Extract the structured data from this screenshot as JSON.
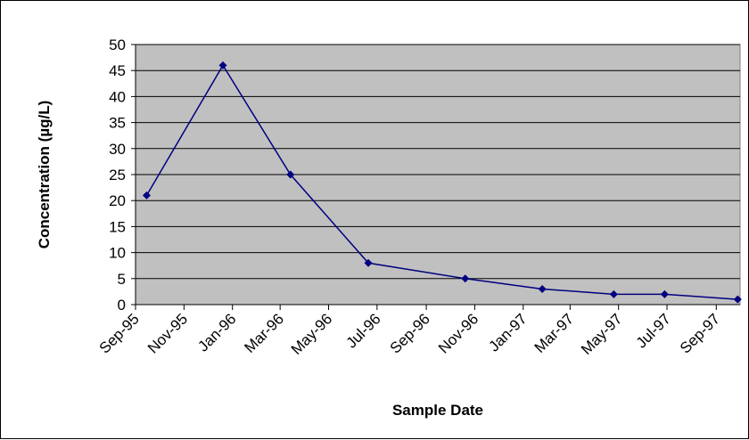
{
  "chart_data": {
    "type": "line",
    "title": "",
    "xlabel": "Sample Date",
    "ylabel": "Concentration (µg/L)",
    "ylim": [
      0,
      50
    ],
    "yticks": [
      0,
      5,
      10,
      15,
      20,
      25,
      30,
      35,
      40,
      45,
      50
    ],
    "xticks": [
      {
        "date": "1995-09-01",
        "label": "Sep-95"
      },
      {
        "date": "1995-11-01",
        "label": "Nov-95"
      },
      {
        "date": "1996-01-01",
        "label": "Jan-96"
      },
      {
        "date": "1996-03-01",
        "label": "Mar-96"
      },
      {
        "date": "1996-05-01",
        "label": "May-96"
      },
      {
        "date": "1996-07-01",
        "label": "Jul-96"
      },
      {
        "date": "1996-09-01",
        "label": "Sep-96"
      },
      {
        "date": "1996-11-01",
        "label": "Nov-96"
      },
      {
        "date": "1997-01-01",
        "label": "Jan-97"
      },
      {
        "date": "1997-03-01",
        "label": "Mar-97"
      },
      {
        "date": "1997-05-01",
        "label": "May-97"
      },
      {
        "date": "1997-07-01",
        "label": "Jul-97"
      },
      {
        "date": "1997-09-01",
        "label": "Sep-97"
      }
    ],
    "xlim": [
      "1995-09-01",
      "1997-10-01"
    ],
    "grid": true,
    "legend": "none",
    "plot_background": "#C0C0C0",
    "series": [
      {
        "color": "#000080",
        "marker": "diamond",
        "points": [
          {
            "x": "1995-09-15",
            "y": 21
          },
          {
            "x": "1995-12-20",
            "y": 46
          },
          {
            "x": "1996-03-14",
            "y": 25
          },
          {
            "x": "1996-06-20",
            "y": 8
          },
          {
            "x": "1996-10-20",
            "y": 5
          },
          {
            "x": "1997-01-25",
            "y": 3
          },
          {
            "x": "1997-04-25",
            "y": 2
          },
          {
            "x": "1997-06-28",
            "y": 2
          },
          {
            "x": "1997-09-28",
            "y": 1
          }
        ]
      }
    ]
  }
}
